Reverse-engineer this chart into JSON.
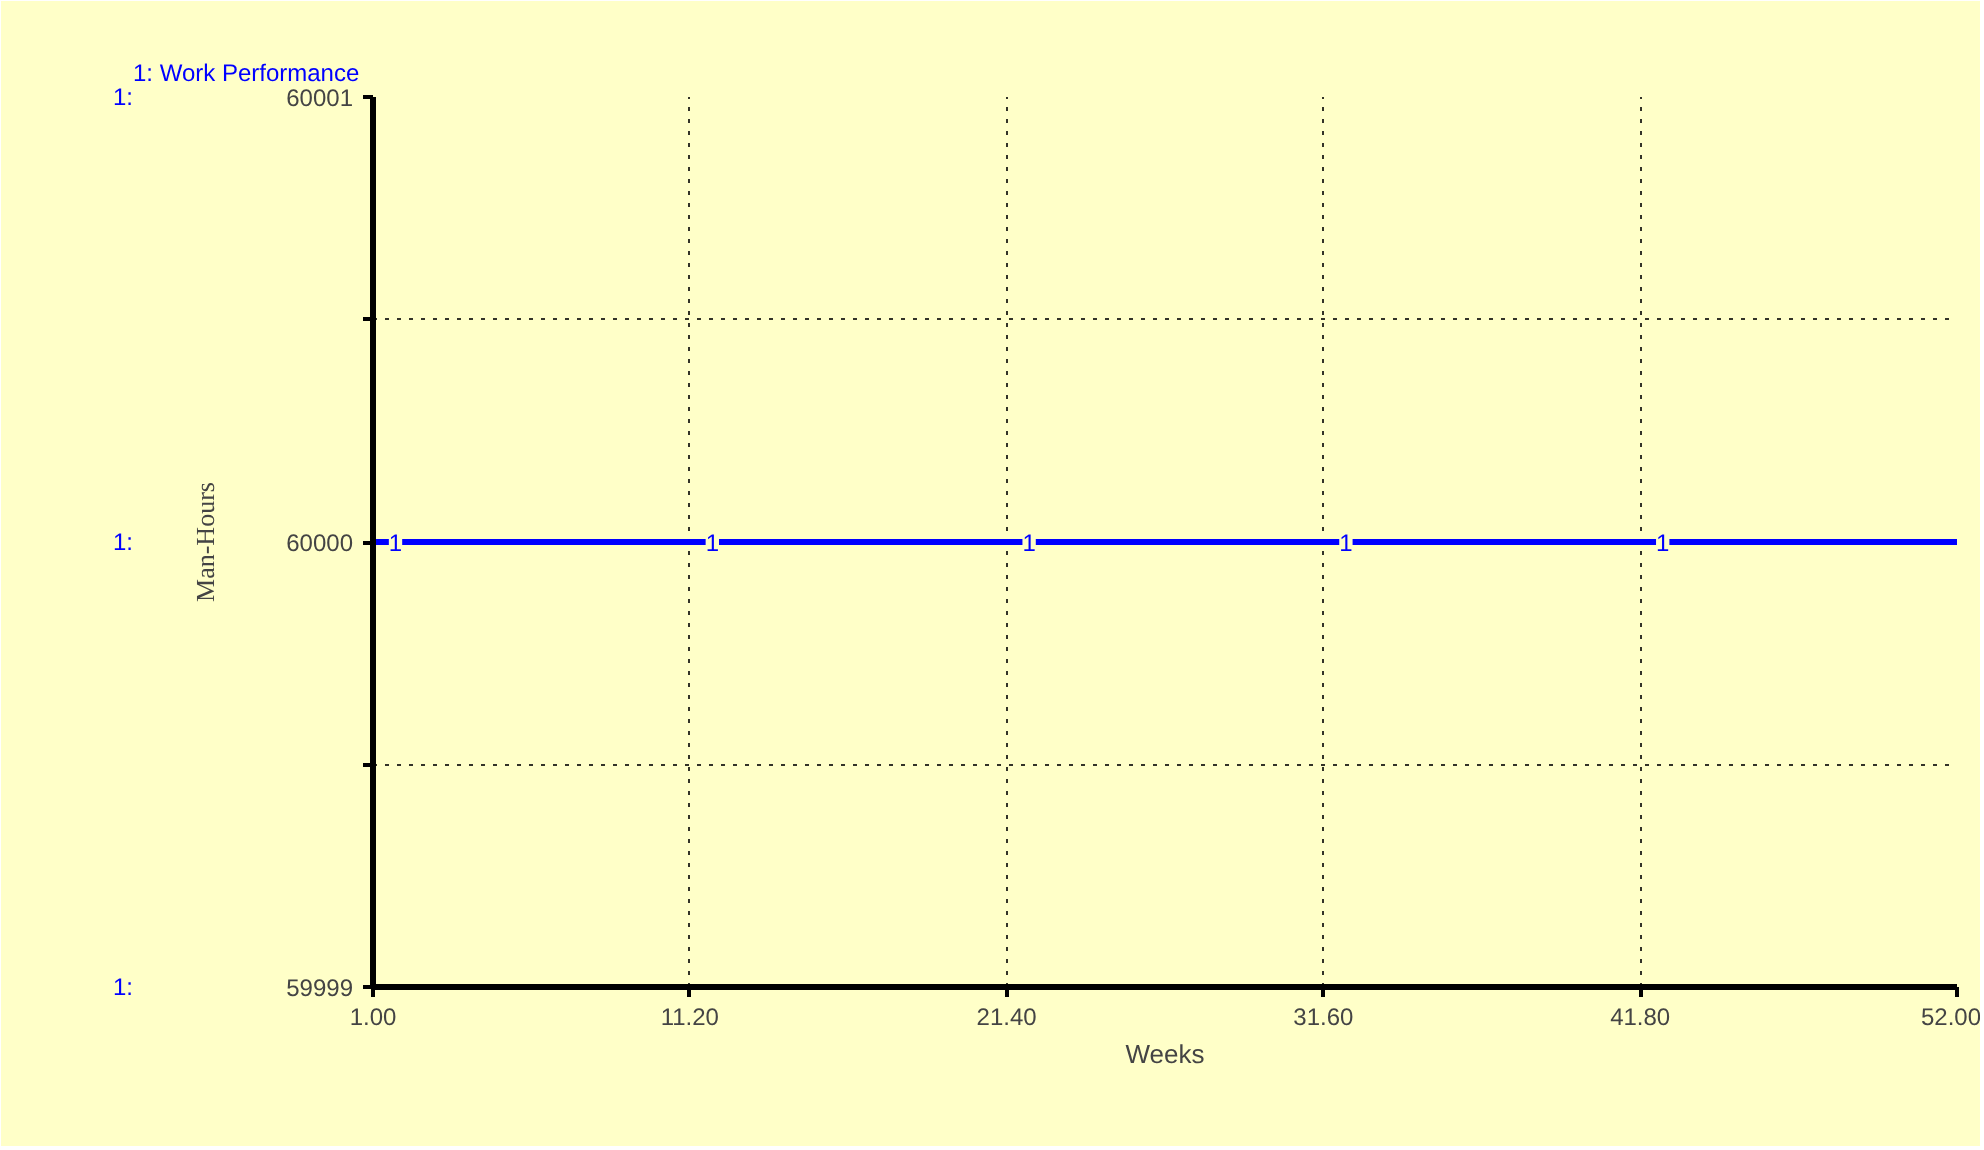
{
  "chart_data": {
    "type": "line",
    "title": "1: Work Performance",
    "xlabel": "Weeks",
    "ylabel": "Man-Hours",
    "x": [
      1,
      52
    ],
    "series": [
      {
        "name": "1",
        "color": "#0000ff",
        "values": [
          60000,
          60000
        ]
      }
    ],
    "xlim": [
      1,
      52
    ],
    "xticks": [
      {
        "value": 1,
        "label": "1.00"
      },
      {
        "value": 11.2,
        "label": "11.20"
      },
      {
        "value": 21.4,
        "label": "21.40"
      },
      {
        "value": 31.6,
        "label": "31.60"
      },
      {
        "value": 41.8,
        "label": "41.80"
      },
      {
        "value": 52,
        "label": "52.00"
      }
    ],
    "ylim": [
      59999,
      60001
    ],
    "yticks": [
      59999,
      {
        "value": 59999.5,
        "label": null
      },
      60000,
      {
        "value": 60000.5,
        "label": null
      },
      60001
    ],
    "grid": true,
    "marker": "none",
    "line_style": "solid",
    "annotations": [
      "1:",
      "1:",
      "1:"
    ]
  }
}
